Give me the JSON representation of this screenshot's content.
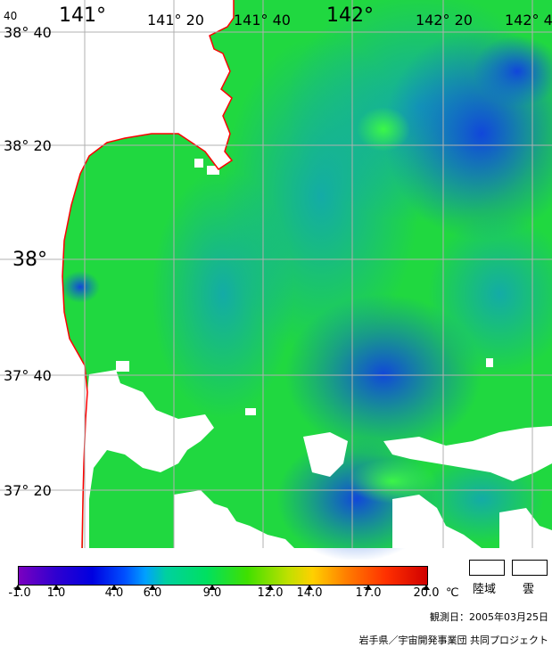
{
  "map": {
    "lon_labels": [
      "141°",
      "141° 20",
      "141° 40",
      "142°",
      "142° 20",
      "142° 4"
    ],
    "lat_labels": [
      "38° 40",
      "38° 20",
      "38°",
      "37° 40",
      "37° 20"
    ],
    "corner_label": "40"
  },
  "legend": {
    "ticks": [
      "-1.0",
      "1.0",
      "4.0",
      "6.0",
      "9.0",
      "12.0",
      "14.0",
      "17.0",
      "20.0"
    ],
    "unit": "℃",
    "land_label": "陸域",
    "cloud_label": "雲"
  },
  "footer": {
    "date": "観測日：2005年03月25日",
    "credit": "岩手県／宇宙開発事業団 共同プロジェクト"
  },
  "colors": {
    "sea_green": "#20d840",
    "sea_blue": "#1060e0",
    "coast": "#ff0000",
    "grid": "#b0b0b0"
  }
}
